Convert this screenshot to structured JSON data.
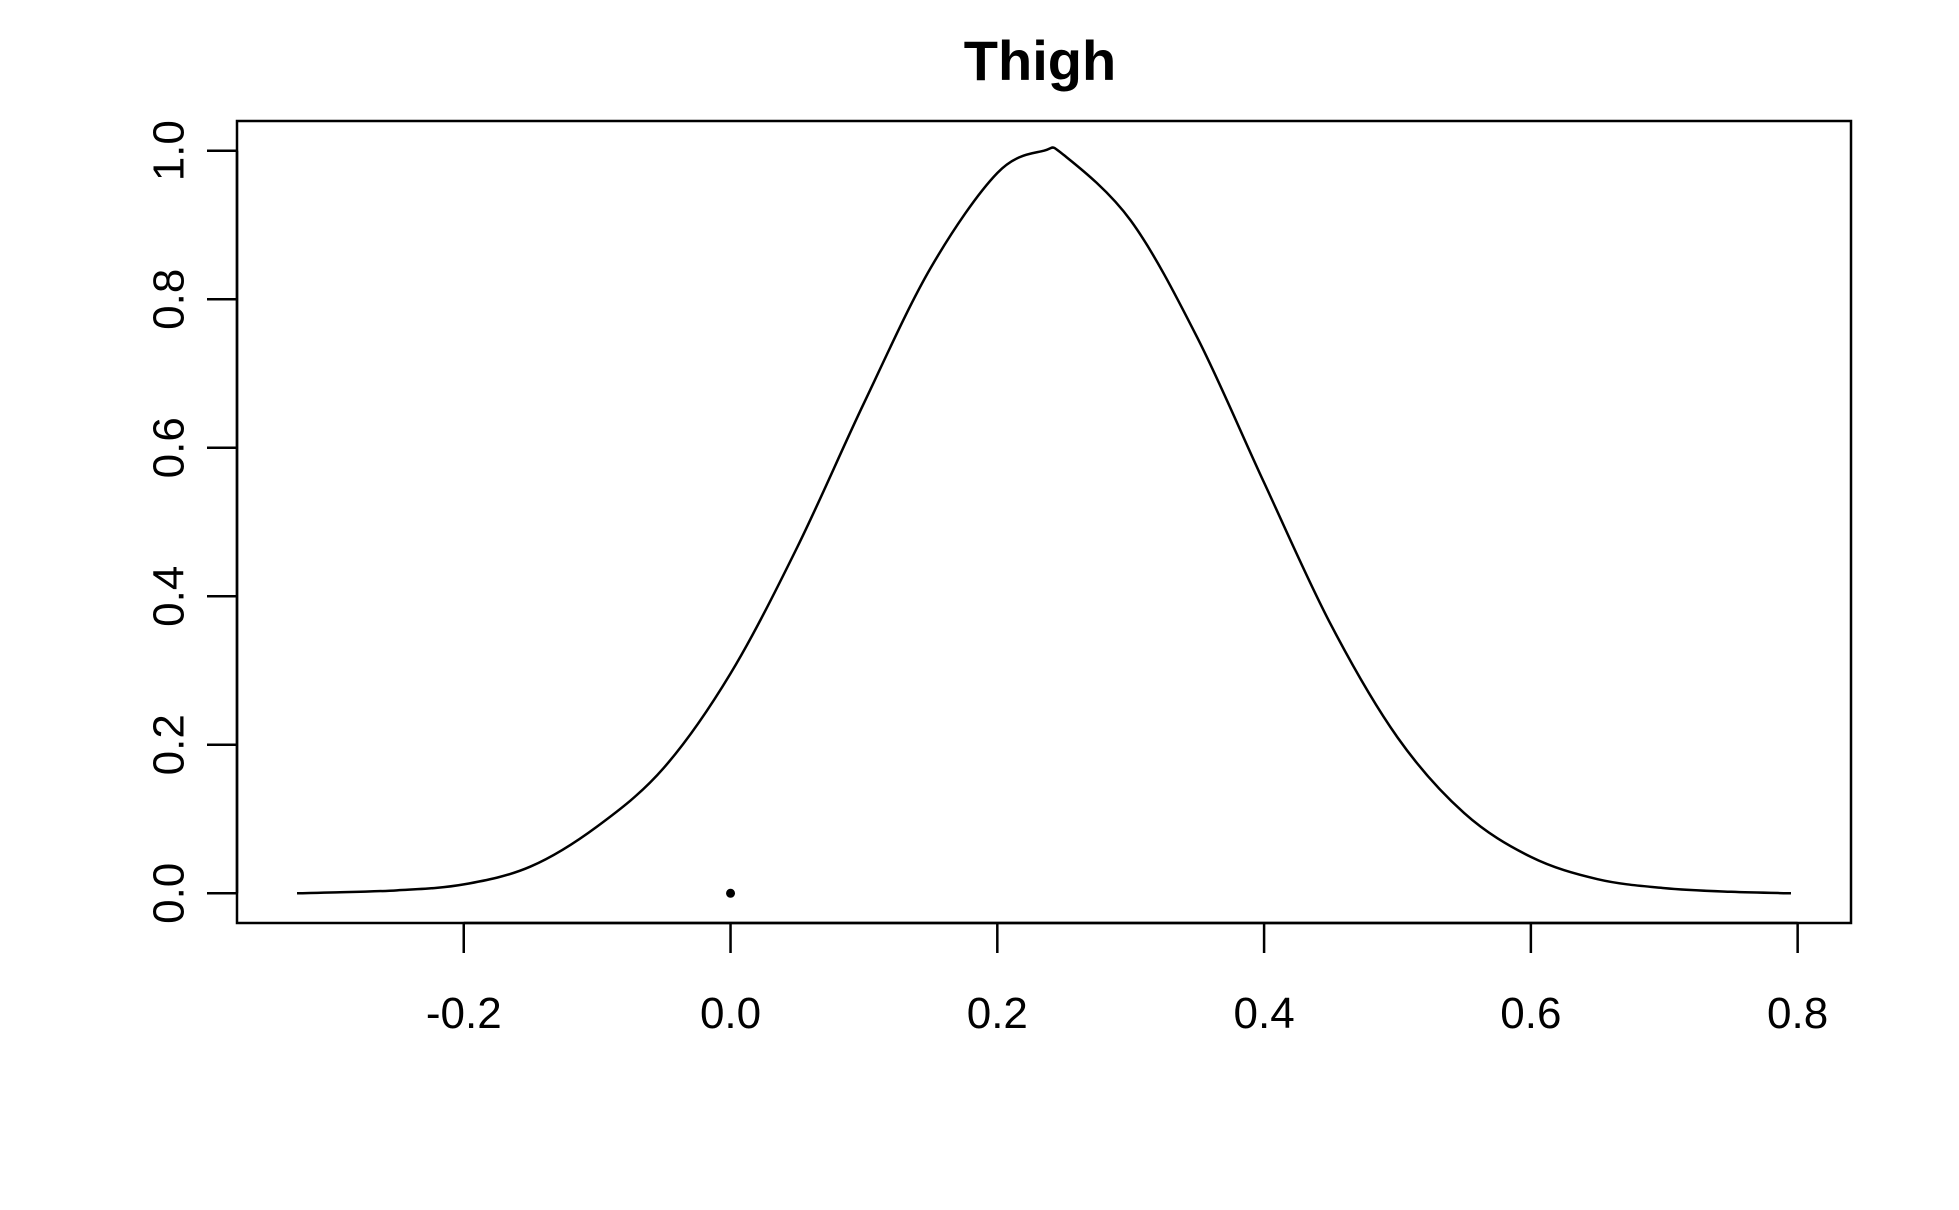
{
  "chart_data": {
    "type": "line",
    "title": "Thigh",
    "xlabel": "",
    "ylabel": "",
    "xlim": [
      -0.37,
      0.84
    ],
    "ylim": [
      -0.04,
      1.04
    ],
    "x_ticks": [
      -0.2,
      0.0,
      0.2,
      0.4,
      0.6,
      0.8
    ],
    "x_tick_labels": [
      "-0.2",
      "0.0",
      "0.2",
      "0.4",
      "0.6",
      "0.8"
    ],
    "y_ticks": [
      0.0,
      0.2,
      0.4,
      0.6,
      0.8,
      1.0
    ],
    "y_tick_labels": [
      "0.0",
      "0.2",
      "0.4",
      "0.6",
      "0.8",
      "1.0"
    ],
    "grid": false,
    "series": [
      {
        "x": [
          -0.325,
          -0.3,
          -0.25,
          -0.2,
          -0.15,
          -0.1,
          -0.05,
          0.0,
          0.05,
          0.1,
          0.15,
          0.2,
          0.235,
          0.25,
          0.3,
          0.35,
          0.4,
          0.45,
          0.5,
          0.55,
          0.6,
          0.65,
          0.7,
          0.75,
          0.795
        ],
        "y": [
          0.0,
          0.001,
          0.004,
          0.012,
          0.036,
          0.09,
          0.169,
          0.296,
          0.466,
          0.66,
          0.842,
          0.97,
          1.0,
          0.994,
          0.906,
          0.748,
          0.553,
          0.362,
          0.21,
          0.108,
          0.049,
          0.019,
          0.007,
          0.002,
          0.0
        ]
      }
    ],
    "points": [
      {
        "x": 0.0,
        "y": 0.0
      }
    ]
  }
}
